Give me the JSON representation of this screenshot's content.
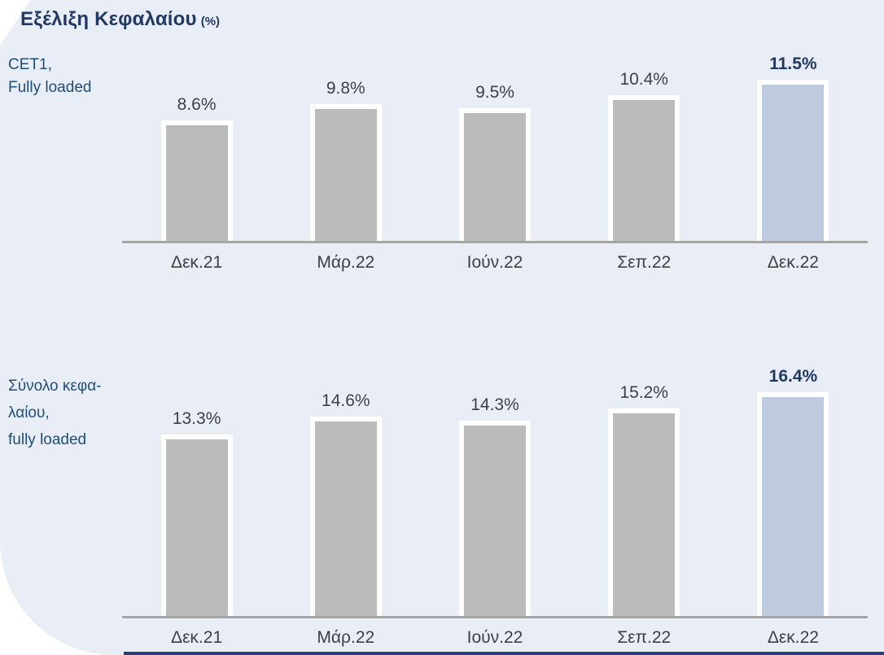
{
  "title": {
    "main": "Εξέλιξη Κεφαλαίου",
    "unit": "(%)"
  },
  "colors": {
    "panel_background": "#e9edf6",
    "bar_gray": "#bbbbbb",
    "bar_highlight_blue": "#bfcbde",
    "bar_border_white": "#ffffff",
    "axis_line_gray": "#a6a6a6",
    "title_navy": "#1f3864",
    "series_label_blue": "#1f4e79",
    "value_label_gray": "#404040",
    "bottom_accent_navy": "#24427c"
  },
  "chart_data": [
    {
      "type": "bar",
      "name": "cet1-fully-loaded",
      "label_lines": [
        "CET1,",
        "Fully loaded"
      ],
      "categories": [
        "Δεκ.21",
        "Μάρ.22",
        "Ιούν.22",
        "Σεπ.22",
        "Δεκ.22"
      ],
      "values": [
        8.6,
        9.8,
        9.5,
        10.4,
        11.5
      ],
      "value_labels": [
        "8.6%",
        "9.8%",
        "9.5%",
        "10.4%",
        "11.5%"
      ],
      "highlight_index": 4,
      "ylim": [
        0,
        13.5
      ],
      "xlabel": "",
      "ylabel": "",
      "grid": false,
      "legend": "none"
    },
    {
      "type": "bar",
      "name": "total-capital-fully-loaded",
      "label_lines": [
        "Σύνολο κεφα-",
        "λαίου,",
        "fully loaded"
      ],
      "categories": [
        "Δεκ.21",
        "Μάρ.22",
        "Ιούν.22",
        "Σεπ.22",
        "Δεκ.22"
      ],
      "values": [
        13.3,
        14.6,
        14.3,
        15.2,
        16.4
      ],
      "value_labels": [
        "13.3%",
        "14.6%",
        "14.3%",
        "15.2%",
        "16.4%"
      ],
      "highlight_index": 4,
      "ylim": [
        0,
        16.7
      ],
      "xlabel": "",
      "ylabel": "",
      "grid": false,
      "legend": "none"
    }
  ]
}
